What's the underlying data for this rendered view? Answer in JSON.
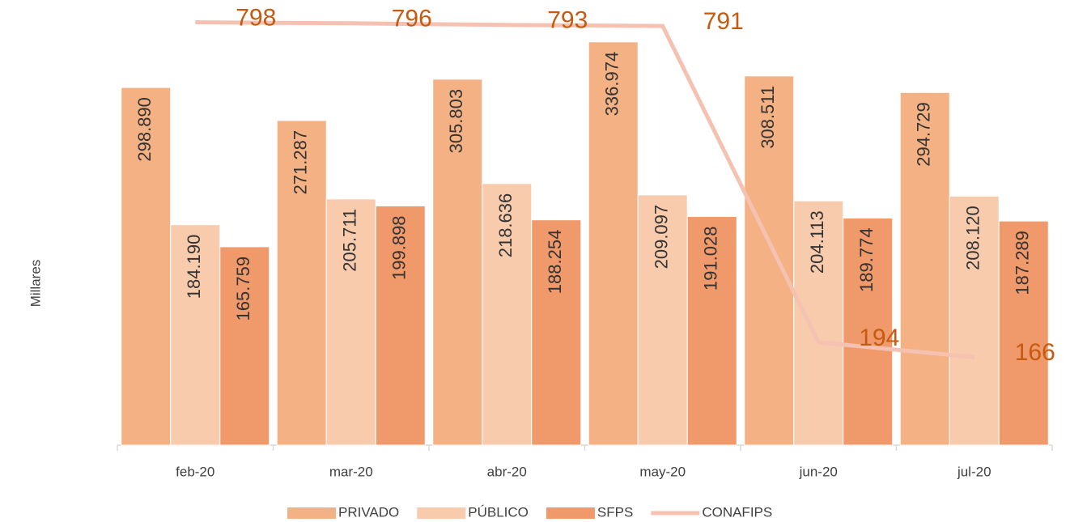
{
  "chart_data": {
    "type": "bar+line",
    "y_label": "Millares",
    "categories": [
      "feb-20",
      "mar-20",
      "abr-20",
      "may-20",
      "jun-20",
      "jul-20"
    ],
    "ylim": [
      0,
      372000
    ],
    "y2lim": [
      0,
      840
    ],
    "series": [
      {
        "name": "PRIVADO",
        "type": "bar",
        "color": "#f4b183",
        "values": [
          298890,
          271287,
          305803,
          336974,
          308511,
          294729
        ],
        "value_labels": [
          "298.890",
          "271.287",
          "305.803",
          "336.974",
          "308.511",
          "294.729"
        ]
      },
      {
        "name": "PÚBLICO",
        "type": "bar",
        "color": "#f8cbad",
        "values": [
          184190,
          205711,
          218636,
          209097,
          204113,
          208120
        ],
        "value_labels": [
          "184.190",
          "205.711",
          "218.636",
          "209.097",
          "204.113",
          "208.120"
        ]
      },
      {
        "name": "SFPS",
        "type": "bar",
        "color": "#f0996b",
        "values": [
          165759,
          199898,
          188254,
          191028,
          189774,
          187289
        ],
        "value_labels": [
          "165.759",
          "199.898",
          "188.254",
          "191.028",
          "189.774",
          "187.289"
        ]
      },
      {
        "name": "CONAFIPS",
        "type": "line",
        "axis": "y2",
        "color": "#f5c1b1",
        "values": [
          798,
          796,
          793,
          791,
          194,
          166
        ]
      }
    ],
    "legend": "bottom"
  }
}
